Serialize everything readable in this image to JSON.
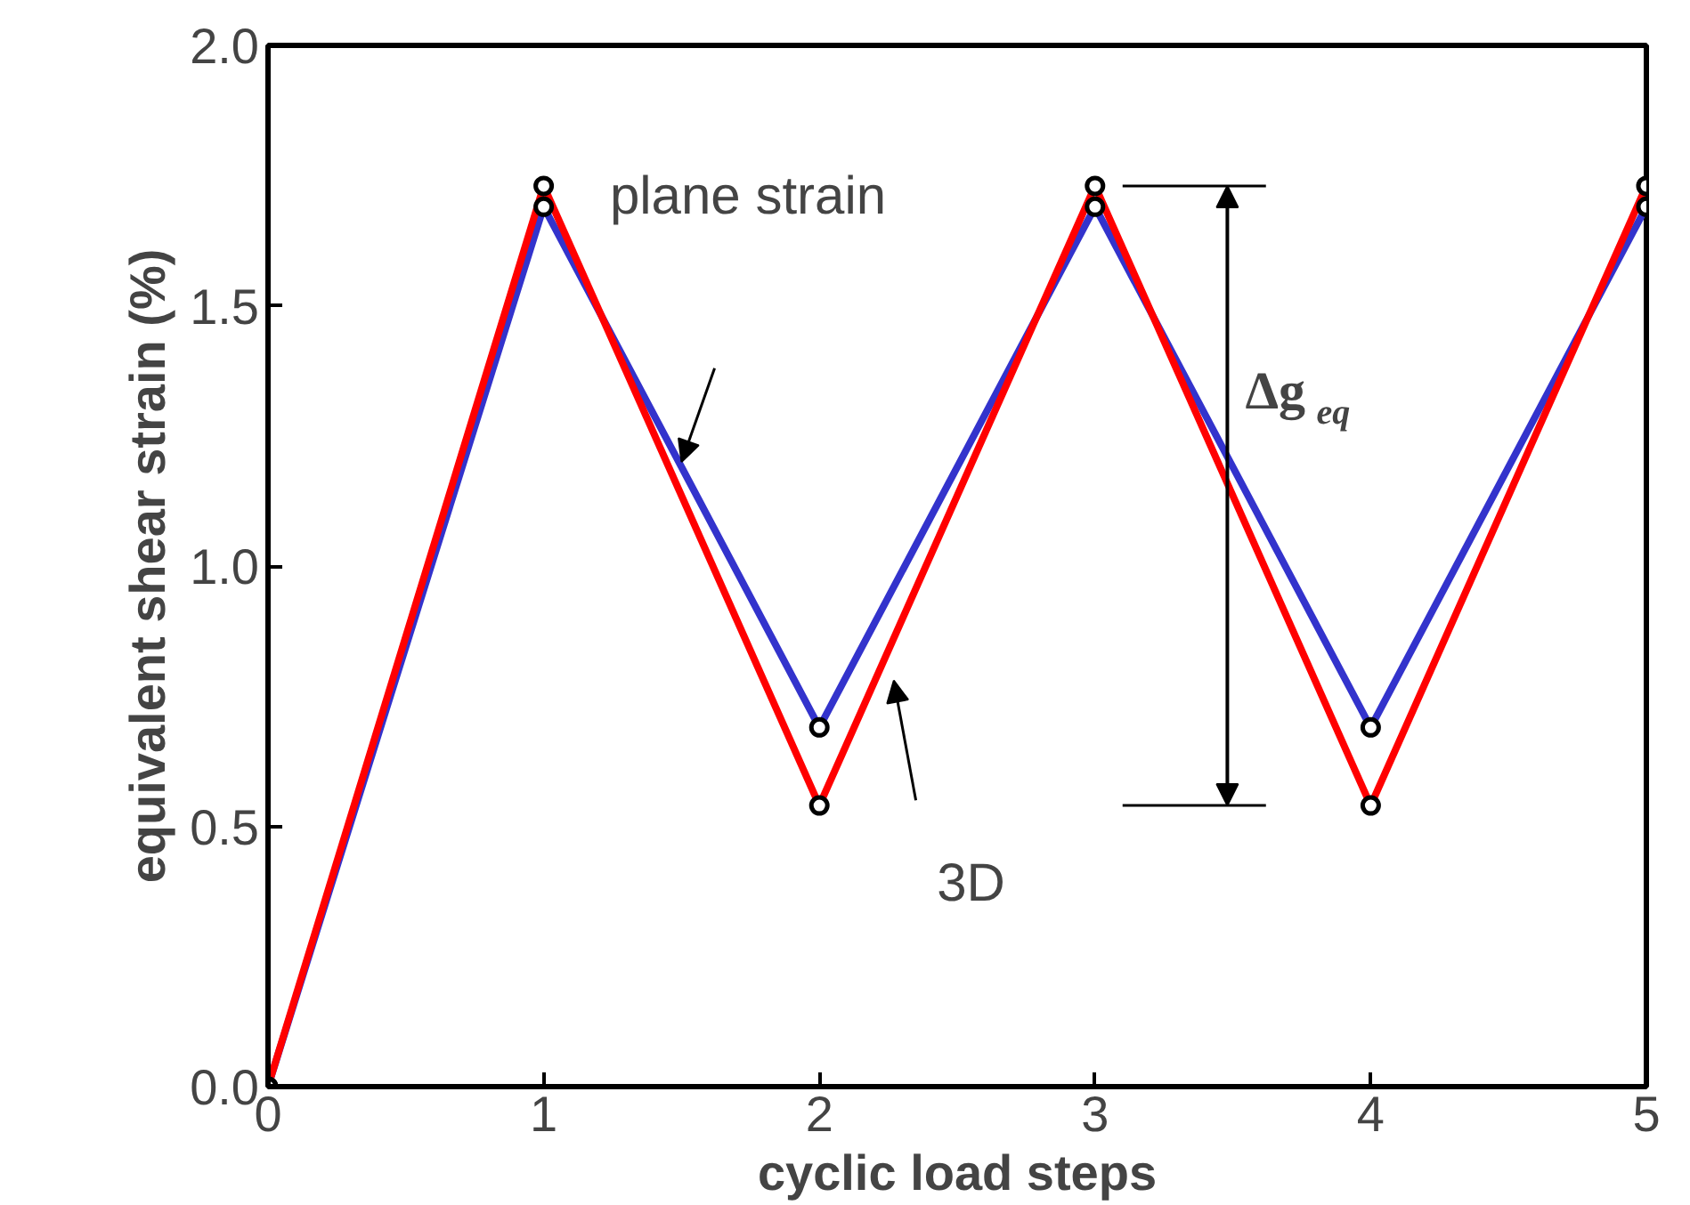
{
  "chart_data": {
    "type": "line",
    "xlabel": "cyclic load steps",
    "ylabel": "equivalent shear strain (%)",
    "x": [
      0,
      1,
      2,
      3,
      4,
      5
    ],
    "series": [
      {
        "color": "#3333cc",
        "values": [
          0,
          1.69,
          0.69,
          1.69,
          0.69,
          1.69
        ]
      },
      {
        "color": "#ff0000",
        "values": [
          0,
          1.73,
          0.54,
          1.73,
          0.54,
          1.73
        ]
      }
    ],
    "xlim": [
      0,
      5
    ],
    "ylim": [
      0,
      2
    ],
    "xticks": [
      0,
      1,
      2,
      3,
      4,
      5
    ],
    "yticks": [
      {
        "value": 0,
        "label": "0.0"
      },
      {
        "value": 0.5,
        "label": "0.5"
      },
      {
        "value": 1,
        "label": "1.0"
      },
      {
        "value": 1.5,
        "label": "1.5"
      },
      {
        "value": 2,
        "label": "2.0"
      }
    ],
    "marker": "circle",
    "grid": false,
    "ref_lines": [
      {
        "axis": "y",
        "value": 1.73
      },
      {
        "axis": "y",
        "value": 0.54
      }
    ],
    "annotations": [
      "plane strain",
      "3D",
      "Δg$_{eq}$"
    ]
  }
}
